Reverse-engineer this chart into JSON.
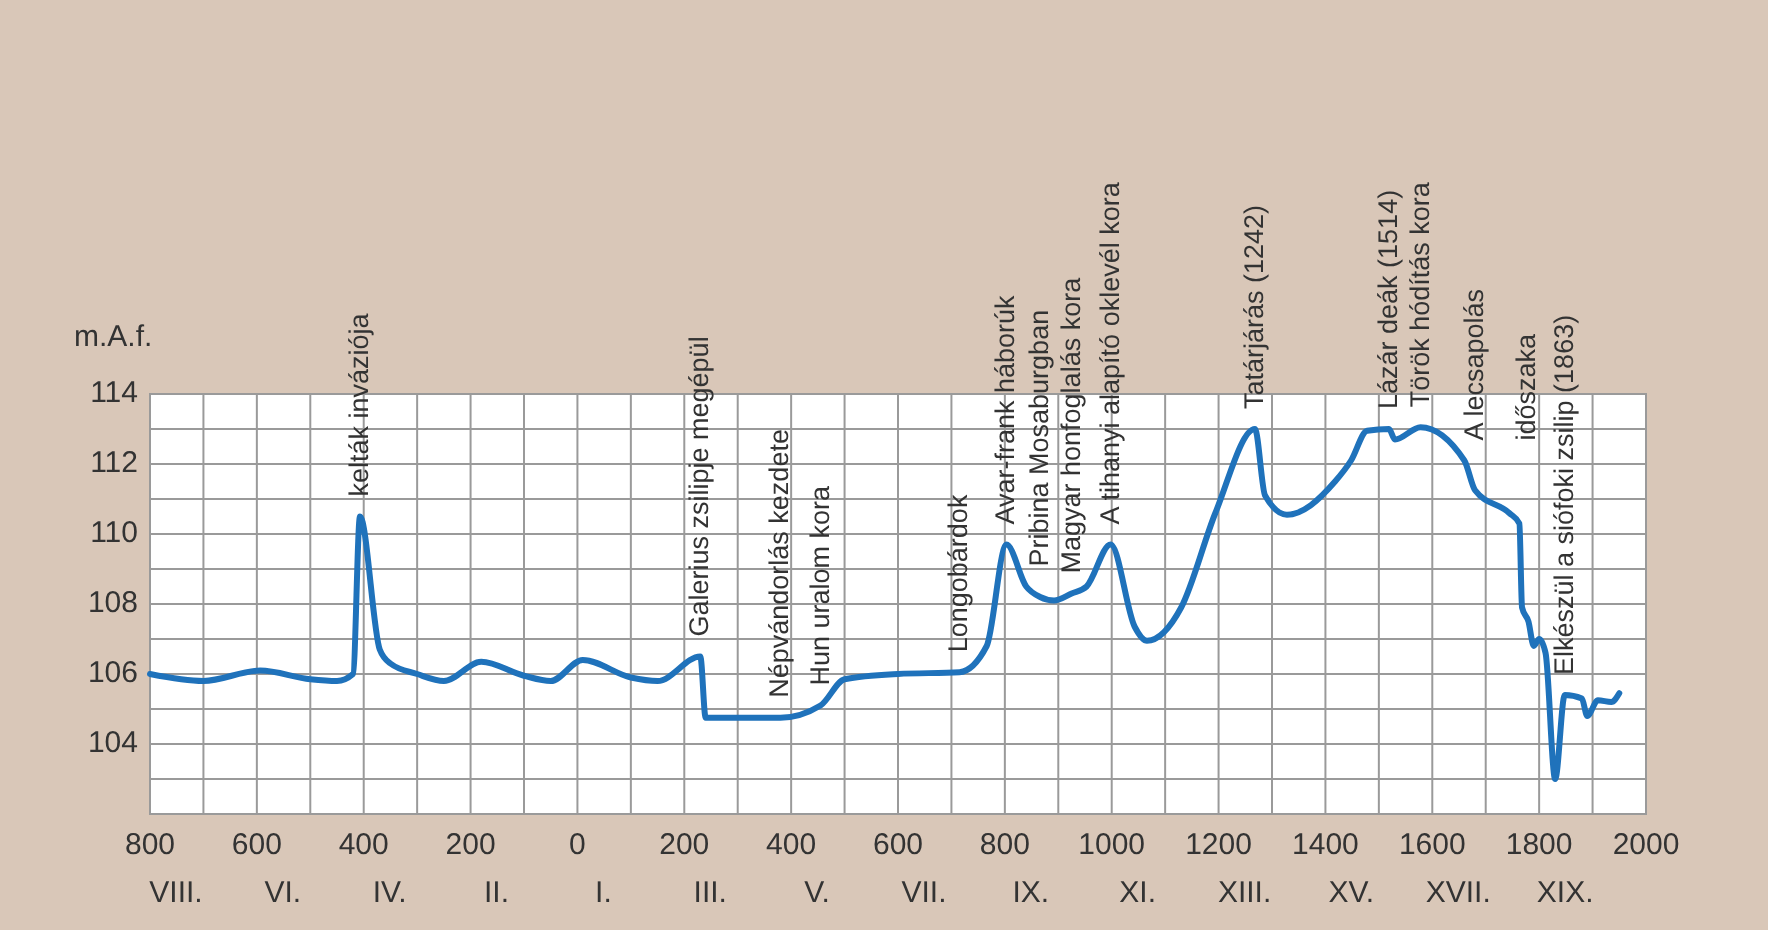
{
  "chart_data": {
    "type": "line",
    "ylabel": "m.A.f.",
    "x": [
      -800,
      -700,
      -594,
      -500,
      -450,
      -420,
      -407,
      -370,
      -350,
      -300,
      -250,
      -180,
      -100,
      -50,
      10,
      100,
      150,
      230,
      240,
      380,
      455,
      500,
      600,
      715,
      766,
      803,
      840,
      866,
      892,
      925,
      953,
      998,
      1043,
      1066,
      1130,
      1194,
      1268,
      1287,
      1328,
      1418,
      1448,
      1478,
      1519,
      1530,
      1578,
      1660,
      1680,
      1744,
      1763,
      1768,
      1780,
      1790,
      1800,
      1812,
      1830,
      1848,
      1880,
      1890,
      1910,
      1935,
      1950
    ],
    "series": [
      {
        "color": "#1f72bb",
        "values": [
          106.0,
          105.8,
          106.1,
          105.85,
          105.8,
          106.0,
          110.5,
          106.7,
          106.3,
          106.0,
          105.8,
          106.35,
          105.95,
          105.8,
          106.4,
          105.9,
          105.8,
          106.5,
          104.75,
          104.75,
          105.1,
          105.85,
          106.0,
          106.05,
          106.8,
          109.7,
          108.5,
          108.2,
          108.1,
          108.3,
          108.5,
          109.7,
          107.35,
          106.95,
          107.9,
          110.6,
          113.0,
          111.1,
          110.55,
          111.5,
          112.1,
          112.95,
          113.0,
          112.7,
          113.05,
          112.1,
          111.25,
          110.6,
          110.3,
          107.9,
          107.5,
          106.8,
          107.0,
          106.6,
          103.0,
          105.4,
          105.3,
          104.8,
          105.25,
          105.2,
          105.45
        ]
      }
    ],
    "xlim": [
      -800,
      2000
    ],
    "xticks": [
      {
        "value": -800,
        "label": "800\nVIII."
      },
      {
        "value": -700,
        "label": null
      },
      {
        "value": -600,
        "label": "600\nVI."
      },
      {
        "value": -500,
        "label": null
      },
      {
        "value": -400,
        "label": "400\nIV."
      },
      {
        "value": -300,
        "label": null
      },
      {
        "value": -200,
        "label": "200\nII."
      },
      {
        "value": -100,
        "label": null
      },
      {
        "value": 0,
        "label": "0\nI."
      },
      {
        "value": 100,
        "label": null
      },
      {
        "value": 200,
        "label": "200\nIII."
      },
      {
        "value": 300,
        "label": null
      },
      {
        "value": 400,
        "label": "400\nV."
      },
      {
        "value": 500,
        "label": null
      },
      {
        "value": 600,
        "label": "600\nVII."
      },
      {
        "value": 700,
        "label": null
      },
      {
        "value": 800,
        "label": "800\nIX."
      },
      {
        "value": 900,
        "label": null
      },
      {
        "value": 1000,
        "label": "1000\nXI."
      },
      {
        "value": 1100,
        "label": null
      },
      {
        "value": 1200,
        "label": "1200\nXIII."
      },
      {
        "value": 1300,
        "label": null
      },
      {
        "value": 1400,
        "label": "1400\nXV."
      },
      {
        "value": 1500,
        "label": null
      },
      {
        "value": 1600,
        "label": "1600\nXVII."
      },
      {
        "value": 1700,
        "label": null
      },
      {
        "value": 1800,
        "label": "1800\nXIX."
      },
      {
        "value": 1900,
        "label": null
      },
      2000
    ],
    "ylim": [
      102,
      114
    ],
    "yticks": [
      {
        "value": 103,
        "label": null
      },
      104,
      {
        "value": 105,
        "label": null
      },
      106,
      {
        "value": 107,
        "label": null
      },
      108,
      {
        "value": 109,
        "label": null
      },
      110,
      {
        "value": 111,
        "label": null
      },
      112,
      {
        "value": 113,
        "label": null
      },
      114
    ],
    "grid": true,
    "marker": "none",
    "line_style": "solid",
    "annotations": [
      {
        "text": "kelták inváziója",
        "x": -407,
        "y": 110.5
      },
      {
        "text": "Galerius zsilipje megépül",
        "x": 230,
        "y": 106.5
      },
      {
        "text": "Népvándorlás kezdete",
        "x": 380,
        "y": 104.75
      },
      {
        "text": "Hun uralom kora",
        "x": 455,
        "y": 105.1
      },
      {
        "text": "Longobárdok",
        "x": 715,
        "y": 106.05
      },
      {
        "text": "Avar-frank háborúk",
        "x": 803,
        "y": 109.7
      },
      {
        "text": "Pribina Mosaburgban",
        "x": 866,
        "y": 108.2
      },
      {
        "text": "Magyar honfoglalás kora",
        "x": 925,
        "y": 108.3
      },
      {
        "text": "A tihanyi alapító oklevél kora",
        "x": 998,
        "y": 109.7
      },
      {
        "text": "Tatárjárás (1242)",
        "x": 1268,
        "y": 113.0
      },
      {
        "text": "Lázár deák (1514)",
        "x": 1519,
        "y": 113.0
      },
      {
        "text": "Török hódítás kora",
        "x": 1578,
        "y": 113.05
      },
      {
        "text": "A lecsapolás\nidőszaka",
        "x": 1680,
        "y": 111.25
      },
      {
        "text": "Elkészül a siófoki zsilip (1863)",
        "x": 1848,
        "y": 105.4
      }
    ]
  }
}
